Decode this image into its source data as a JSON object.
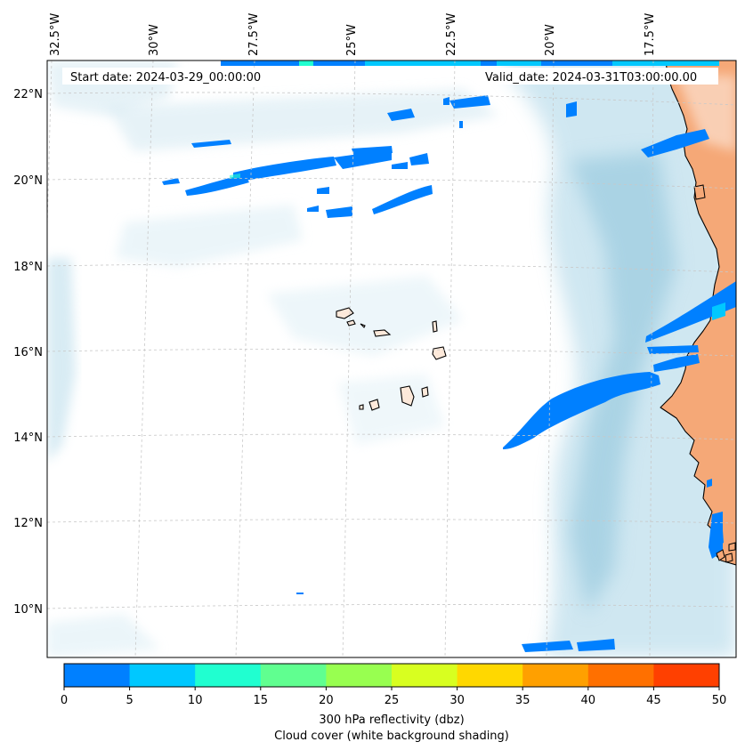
{
  "map": {
    "start_date_text": "Start date: 2024-03-29_00:00:00",
    "valid_date_text": "Valid_date: 2024-03-31T03:00:00.00",
    "lon_labels": [
      "32.5°W",
      "30°W",
      "27.5°W",
      "25°W",
      "22.5°W",
      "20°W",
      "17.5°W"
    ],
    "lat_labels": [
      "22°N",
      "20°N",
      "18°N",
      "16°N",
      "14°N",
      "12°N",
      "10°N"
    ],
    "colors": {
      "land": "#f5a877",
      "cloud": "#a9d4e6",
      "coastline": "#000000",
      "gridline": "#c8c8c8"
    }
  },
  "colorbar": {
    "ticks": [
      "0",
      "5",
      "10",
      "15",
      "20",
      "25",
      "30",
      "35",
      "40",
      "45",
      "50"
    ],
    "colors": [
      "#0080ff",
      "#00c8ff",
      "#20ffd0",
      "#60ff90",
      "#98ff50",
      "#d8ff20",
      "#ffd800",
      "#ffa000",
      "#ff7000",
      "#ff4000"
    ],
    "label_line1": "300 hPa reflectivity (dbz)",
    "label_line2": "Cloud cover (white background shading)"
  }
}
